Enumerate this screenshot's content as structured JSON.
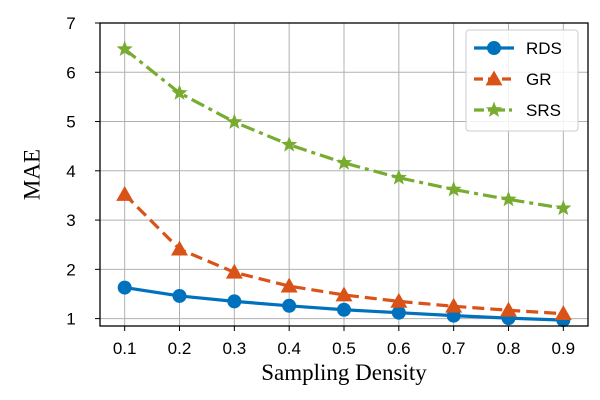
{
  "chart_data": {
    "type": "line",
    "title": "",
    "xlabel": "Sampling Density",
    "ylabel": "MAE",
    "x": [
      0.1,
      0.2,
      0.3,
      0.4,
      0.5,
      0.6,
      0.7,
      0.8,
      0.9
    ],
    "x_tick_labels": [
      "0.1",
      "0.2",
      "0.3",
      "0.4",
      "0.5",
      "0.6",
      "0.7",
      "0.8",
      "0.9"
    ],
    "y_ticks": [
      1,
      2,
      3,
      4,
      5,
      6,
      7
    ],
    "y_tick_labels": [
      "1",
      "2",
      "3",
      "4",
      "5",
      "6",
      "7"
    ],
    "xlim": [
      0.055,
      0.945
    ],
    "ylim": [
      0.85,
      7.0
    ],
    "grid": true,
    "legend_position": "top-right",
    "series": [
      {
        "name": "RDS",
        "color": "#0072BD",
        "line_style": "solid",
        "marker": "circle",
        "values": [
          1.63,
          1.46,
          1.35,
          1.26,
          1.18,
          1.12,
          1.06,
          1.01,
          0.97
        ]
      },
      {
        "name": "GR",
        "color": "#D95319",
        "line_style": "dashed",
        "marker": "triangle",
        "values": [
          3.52,
          2.41,
          1.94,
          1.66,
          1.48,
          1.35,
          1.25,
          1.17,
          1.1
        ]
      },
      {
        "name": "SRS",
        "color": "#77AC30",
        "line_style": "dashdot",
        "marker": "star",
        "values": [
          6.47,
          5.58,
          4.99,
          4.53,
          4.16,
          3.86,
          3.62,
          3.42,
          3.24
        ]
      }
    ]
  }
}
